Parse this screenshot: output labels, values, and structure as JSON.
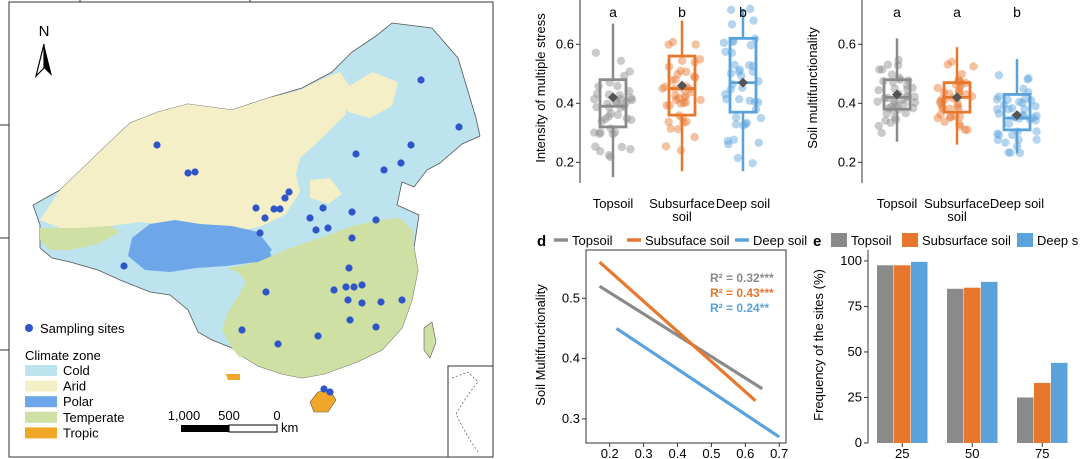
{
  "map": {
    "north_label": "N",
    "legend_sites": "Sampling sites",
    "legend_title": "Climate zone",
    "zones": [
      {
        "name": "Cold",
        "color": "#bde3ef"
      },
      {
        "name": "Arid",
        "color": "#f5efc8"
      },
      {
        "name": "Polar",
        "color": "#6ea6ea"
      },
      {
        "name": "Temperate",
        "color": "#cfe0a4"
      },
      {
        "name": "Tropic",
        "color": "#f0a626"
      }
    ],
    "site_color": "#2f55c9",
    "scale_labels": [
      "1,000",
      "500",
      "0",
      "km"
    ]
  },
  "colors": {
    "topsoil": "#8a8a8a",
    "subsurface": "#e8772e",
    "deep": "#5aa2dc"
  },
  "panel_b": {
    "ylabel": "Intensity of multiple stress",
    "yticks": [
      "0.6",
      "0.4",
      "0.2"
    ],
    "letters": [
      "a",
      "b",
      "b"
    ],
    "xlabels": [
      [
        "Topsoil"
      ],
      [
        "Subsurface",
        "soil"
      ],
      [
        "Deep soil"
      ]
    ]
  },
  "panel_c": {
    "ylabel": "Soil multifunctionality",
    "yticks": [
      "0.6",
      "0.4",
      "0.2"
    ],
    "letters": [
      "a",
      "a",
      "b"
    ],
    "xlabels": [
      [
        "Topsoil"
      ],
      [
        "Subsurface",
        "soil"
      ],
      [
        "Deep soil"
      ]
    ]
  },
  "panel_d": {
    "tag": "d",
    "legend": [
      "Topsoil",
      "Subsuface soil",
      "Deep soil"
    ],
    "ylabel": "Soil Multifunctionality",
    "yticks": [
      "0.5",
      "0.4",
      "0.3"
    ],
    "xticks": [
      "0.2",
      "0.3",
      "0.4",
      "0.5",
      "0.6",
      "0.7"
    ],
    "r2": [
      "R² = 0.32***",
      "R² = 0.43***",
      "R² = 0.24**"
    ]
  },
  "panel_e": {
    "tag": "e",
    "legend": [
      "Topsoil",
      "Subsurface soil",
      "Deep s"
    ],
    "ylabel": "Frequency of the sites (%)",
    "yticks": [
      "100",
      "75",
      "50",
      "25",
      "0"
    ],
    "xticks": [
      "25",
      "50",
      "75"
    ]
  },
  "chart_data": [
    {
      "type": "box",
      "panel": "b",
      "ylabel": "Intensity of multiple stress",
      "ylim": [
        0.13,
        0.75
      ],
      "categories": [
        "Topsoil",
        "Subsurface soil",
        "Deep soil"
      ],
      "boxes": [
        {
          "q1": 0.32,
          "median": 0.39,
          "q3": 0.48,
          "whisker_low": 0.15,
          "whisker_high": 0.67,
          "mean": 0.42
        },
        {
          "q1": 0.36,
          "median": 0.45,
          "q3": 0.56,
          "whisker_low": 0.17,
          "whisker_high": 0.68,
          "mean": 0.46
        },
        {
          "q1": 0.37,
          "median": 0.47,
          "q3": 0.62,
          "whisker_low": 0.17,
          "whisker_high": 0.72,
          "mean": 0.47
        }
      ],
      "letters": [
        "a",
        "b",
        "b"
      ]
    },
    {
      "type": "box",
      "panel": "c",
      "ylabel": "Soil multifunctionality",
      "ylim": [
        0.13,
        0.75
      ],
      "categories": [
        "Topsoil",
        "Subsurface soil",
        "Deep soil"
      ],
      "boxes": [
        {
          "q1": 0.38,
          "median": 0.42,
          "q3": 0.48,
          "whisker_low": 0.27,
          "whisker_high": 0.62,
          "mean": 0.43
        },
        {
          "q1": 0.37,
          "median": 0.42,
          "q3": 0.47,
          "whisker_low": 0.26,
          "whisker_high": 0.59,
          "mean": 0.42
        },
        {
          "q1": 0.31,
          "median": 0.35,
          "q3": 0.43,
          "whisker_low": 0.23,
          "whisker_high": 0.55,
          "mean": 0.36
        }
      ],
      "letters": [
        "a",
        "a",
        "b"
      ]
    },
    {
      "type": "line",
      "panel": "d",
      "ylabel": "Soil Multifunctionality",
      "xlim": [
        0.13,
        0.72
      ],
      "ylim": [
        0.26,
        0.58
      ],
      "series": [
        {
          "name": "Topsoil",
          "x": [
            0.17,
            0.65
          ],
          "y": [
            0.52,
            0.35
          ],
          "r2": "R² = 0.32***"
        },
        {
          "name": "Subsuface soil",
          "x": [
            0.17,
            0.63
          ],
          "y": [
            0.56,
            0.33
          ],
          "r2": "R² = 0.43***"
        },
        {
          "name": "Deep soil",
          "x": [
            0.22,
            0.7
          ],
          "y": [
            0.45,
            0.27
          ],
          "r2": "R² = 0.24**"
        }
      ]
    },
    {
      "type": "bar",
      "panel": "e",
      "ylabel": "Frequency of the sites (%)",
      "ylim": [
        0,
        106
      ],
      "categories": [
        "25",
        "50",
        "75"
      ],
      "series": [
        {
          "name": "Topsoil",
          "values": [
            97.6,
            84.7,
            25
          ]
        },
        {
          "name": "Subsurface soil",
          "values": [
            97.6,
            85.3,
            33
          ]
        },
        {
          "name": "Deep s",
          "values": [
            99.5,
            88.5,
            44
          ]
        }
      ]
    }
  ]
}
